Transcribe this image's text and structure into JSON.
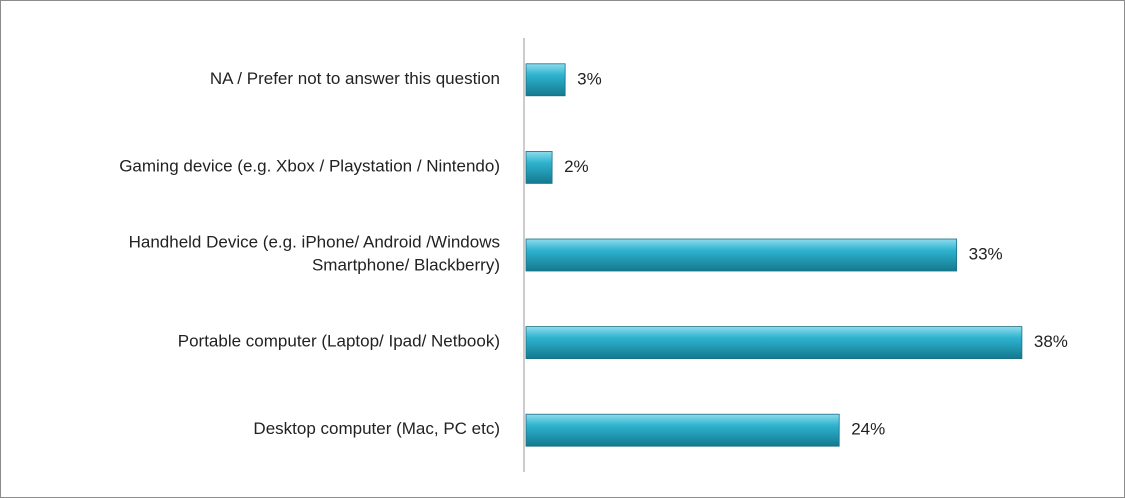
{
  "chart_data": {
    "type": "bar",
    "orientation": "horizontal",
    "categories": [
      "NA / Prefer not to answer this question",
      "Gaming device (e.g. Xbox / Playstation / Nintendo)",
      "Handheld Device (e.g. iPhone/ Android /Windows Smartphone/ Blackberry)",
      "Portable computer (Laptop/ Ipad/ Netbook)",
      "Desktop computer (Mac, PC etc)"
    ],
    "values": [
      3,
      2,
      33,
      38,
      24
    ],
    "value_labels": [
      "3%",
      "2%",
      "33%",
      "38%",
      "24%"
    ],
    "color": "#2fb3cf"
  }
}
